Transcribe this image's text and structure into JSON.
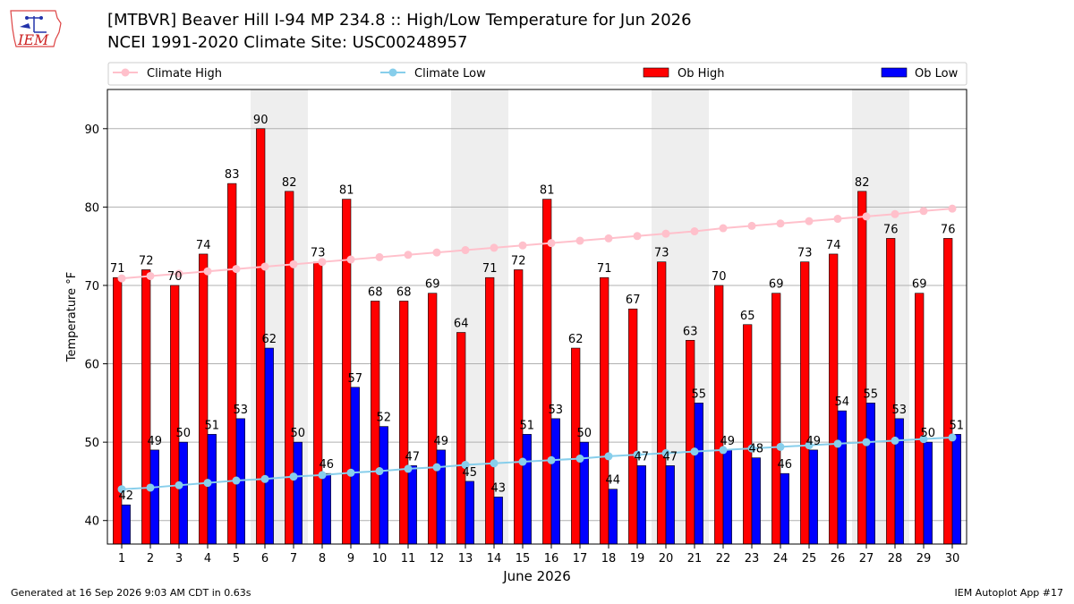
{
  "header": {
    "title_line1": "[MTBVR] Beaver Hill I-94 MP 234.8  :: High/Low Temperature for Jun 2026",
    "title_line2": "NCEI 1991-2020 Climate Site: USC00248957",
    "logo_text": "IEM"
  },
  "footer": {
    "generated": "Generated at 16 Sep 2026 9:03 AM CDT in 0.63s",
    "app": "IEM Autoplot App #17"
  },
  "colors": {
    "ob_high": "#ff0000",
    "ob_low": "#0000ff",
    "climate_high": "#ffc0cb",
    "climate_low": "#87ceeb",
    "weekend_shade": "#eeeeee",
    "grid": "#b0b0b0"
  },
  "chart_data": {
    "type": "bar",
    "xlabel": "June 2026",
    "ylabel": "Temperature °F",
    "ylim": [
      37,
      95
    ],
    "yticks": [
      40,
      50,
      60,
      70,
      80,
      90
    ],
    "grid": true,
    "legend_position": "top",
    "categories": [
      1,
      2,
      3,
      4,
      5,
      6,
      7,
      8,
      9,
      10,
      11,
      12,
      13,
      14,
      15,
      16,
      17,
      18,
      19,
      20,
      21,
      22,
      23,
      24,
      25,
      26,
      27,
      28,
      29,
      30
    ],
    "shaded_days": [
      6,
      7,
      13,
      14,
      20,
      21,
      27,
      28
    ],
    "series": [
      {
        "name": "Climate High",
        "kind": "line",
        "values": [
          70.9,
          71.2,
          71.5,
          71.8,
          72.1,
          72.4,
          72.7,
          73.0,
          73.3,
          73.6,
          73.9,
          74.2,
          74.5,
          74.8,
          75.1,
          75.4,
          75.7,
          76.0,
          76.3,
          76.6,
          76.9,
          77.3,
          77.6,
          77.9,
          78.2,
          78.5,
          78.8,
          79.1,
          79.5,
          79.8
        ]
      },
      {
        "name": "Climate Low",
        "kind": "line",
        "values": [
          44.0,
          44.2,
          44.5,
          44.8,
          45.1,
          45.3,
          45.6,
          45.8,
          46.1,
          46.3,
          46.6,
          46.8,
          47.1,
          47.3,
          47.5,
          47.7,
          47.9,
          48.2,
          48.4,
          48.6,
          48.8,
          49.0,
          49.2,
          49.4,
          49.6,
          49.8,
          50.0,
          50.2,
          50.4,
          50.6
        ]
      },
      {
        "name": "Ob High",
        "kind": "bar",
        "values": [
          71,
          72,
          70,
          74,
          83,
          90,
          82,
          73,
          81,
          68,
          68,
          69,
          64,
          71,
          72,
          81,
          62,
          71,
          67,
          73,
          63,
          70,
          65,
          69,
          73,
          74,
          82,
          76,
          69,
          76
        ]
      },
      {
        "name": "Ob Low",
        "kind": "bar",
        "values": [
          42,
          49,
          50,
          51,
          53,
          62,
          50,
          46,
          57,
          52,
          47,
          49,
          45,
          43,
          51,
          53,
          50,
          44,
          47,
          47,
          55,
          49,
          48,
          46,
          49,
          54,
          55,
          53,
          50,
          51
        ]
      }
    ]
  }
}
